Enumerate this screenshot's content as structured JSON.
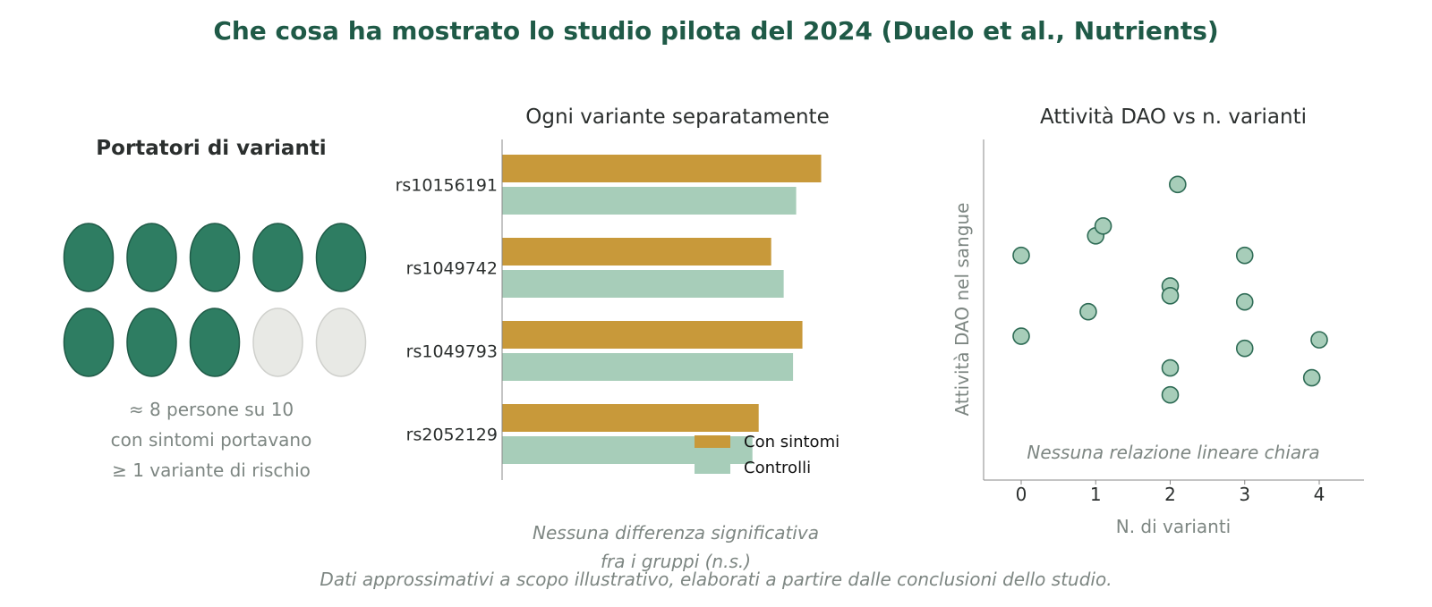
{
  "title": "Che cosa ha mostrato lo studio pilota del 2024 (Duelo et al., Nutrients)",
  "footnote": "Dati approssimativi a scopo illustrativo, elaborati a partire dalle conclusioni dello studio.",
  "colors": {
    "title": "#1f5a47",
    "carrier_fill": "#2e7d62",
    "carrier_stroke": "#1f5a47",
    "noncarrier_fill": "#e8e9e5",
    "noncarrier_stroke": "#cfd0cc",
    "symptoms_bar": "#c8993a",
    "controls_bar": "#a7cdb9",
    "scatter_fill": "#a7cdb9",
    "scatter_stroke": "#2e6b55",
    "muted_text": "#7d8682"
  },
  "left_panel": {
    "title": "Portatori di varianti",
    "carriers": 8,
    "total": 10,
    "caption": [
      "≈ 8 persone su 10",
      "con sintomi portavano",
      "≥ 1 variante di rischio"
    ]
  },
  "chart_data": [
    {
      "type": "bar",
      "orientation": "horizontal",
      "title": "Ogni variante separatamente",
      "categories": [
        "rs10156191",
        "rs1049742",
        "rs1049793",
        "rs2052129"
      ],
      "series": [
        {
          "name": "Con sintomi",
          "values": [
            0.51,
            0.43,
            0.48,
            0.41
          ]
        },
        {
          "name": "Controlli",
          "values": [
            0.47,
            0.45,
            0.465,
            0.4
          ]
        }
      ],
      "xlim": [
        0,
        0.7
      ],
      "legend": "bottom-right",
      "annotation": [
        "Nessuna differenza significativa",
        "fra i gruppi (n.s.)"
      ]
    },
    {
      "type": "scatter",
      "title": "Attività DAO vs n. varianti",
      "xlabel": "N. di varianti",
      "ylabel": "Attività DAO nel sangue",
      "xticks": [
        "0",
        "1",
        "2",
        "3",
        "4"
      ],
      "xlim": [
        -0.5,
        4.6
      ],
      "ylim": [
        0,
        12
      ],
      "points": [
        {
          "x": 0,
          "y": 7.3
        },
        {
          "x": 0,
          "y": 4.0
        },
        {
          "x": 1,
          "y": 8.1
        },
        {
          "x": 1.1,
          "y": 8.5
        },
        {
          "x": 0.9,
          "y": 5.0
        },
        {
          "x": 2.1,
          "y": 10.2
        },
        {
          "x": 2,
          "y": 6.05
        },
        {
          "x": 2,
          "y": 5.65
        },
        {
          "x": 2,
          "y": 2.7
        },
        {
          "x": 2,
          "y": 1.6
        },
        {
          "x": 3,
          "y": 7.3
        },
        {
          "x": 3,
          "y": 5.4
        },
        {
          "x": 3,
          "y": 3.5
        },
        {
          "x": 4,
          "y": 3.85
        },
        {
          "x": 3.9,
          "y": 2.3
        }
      ],
      "annotation": "Nessuna relazione lineare chiara"
    }
  ]
}
